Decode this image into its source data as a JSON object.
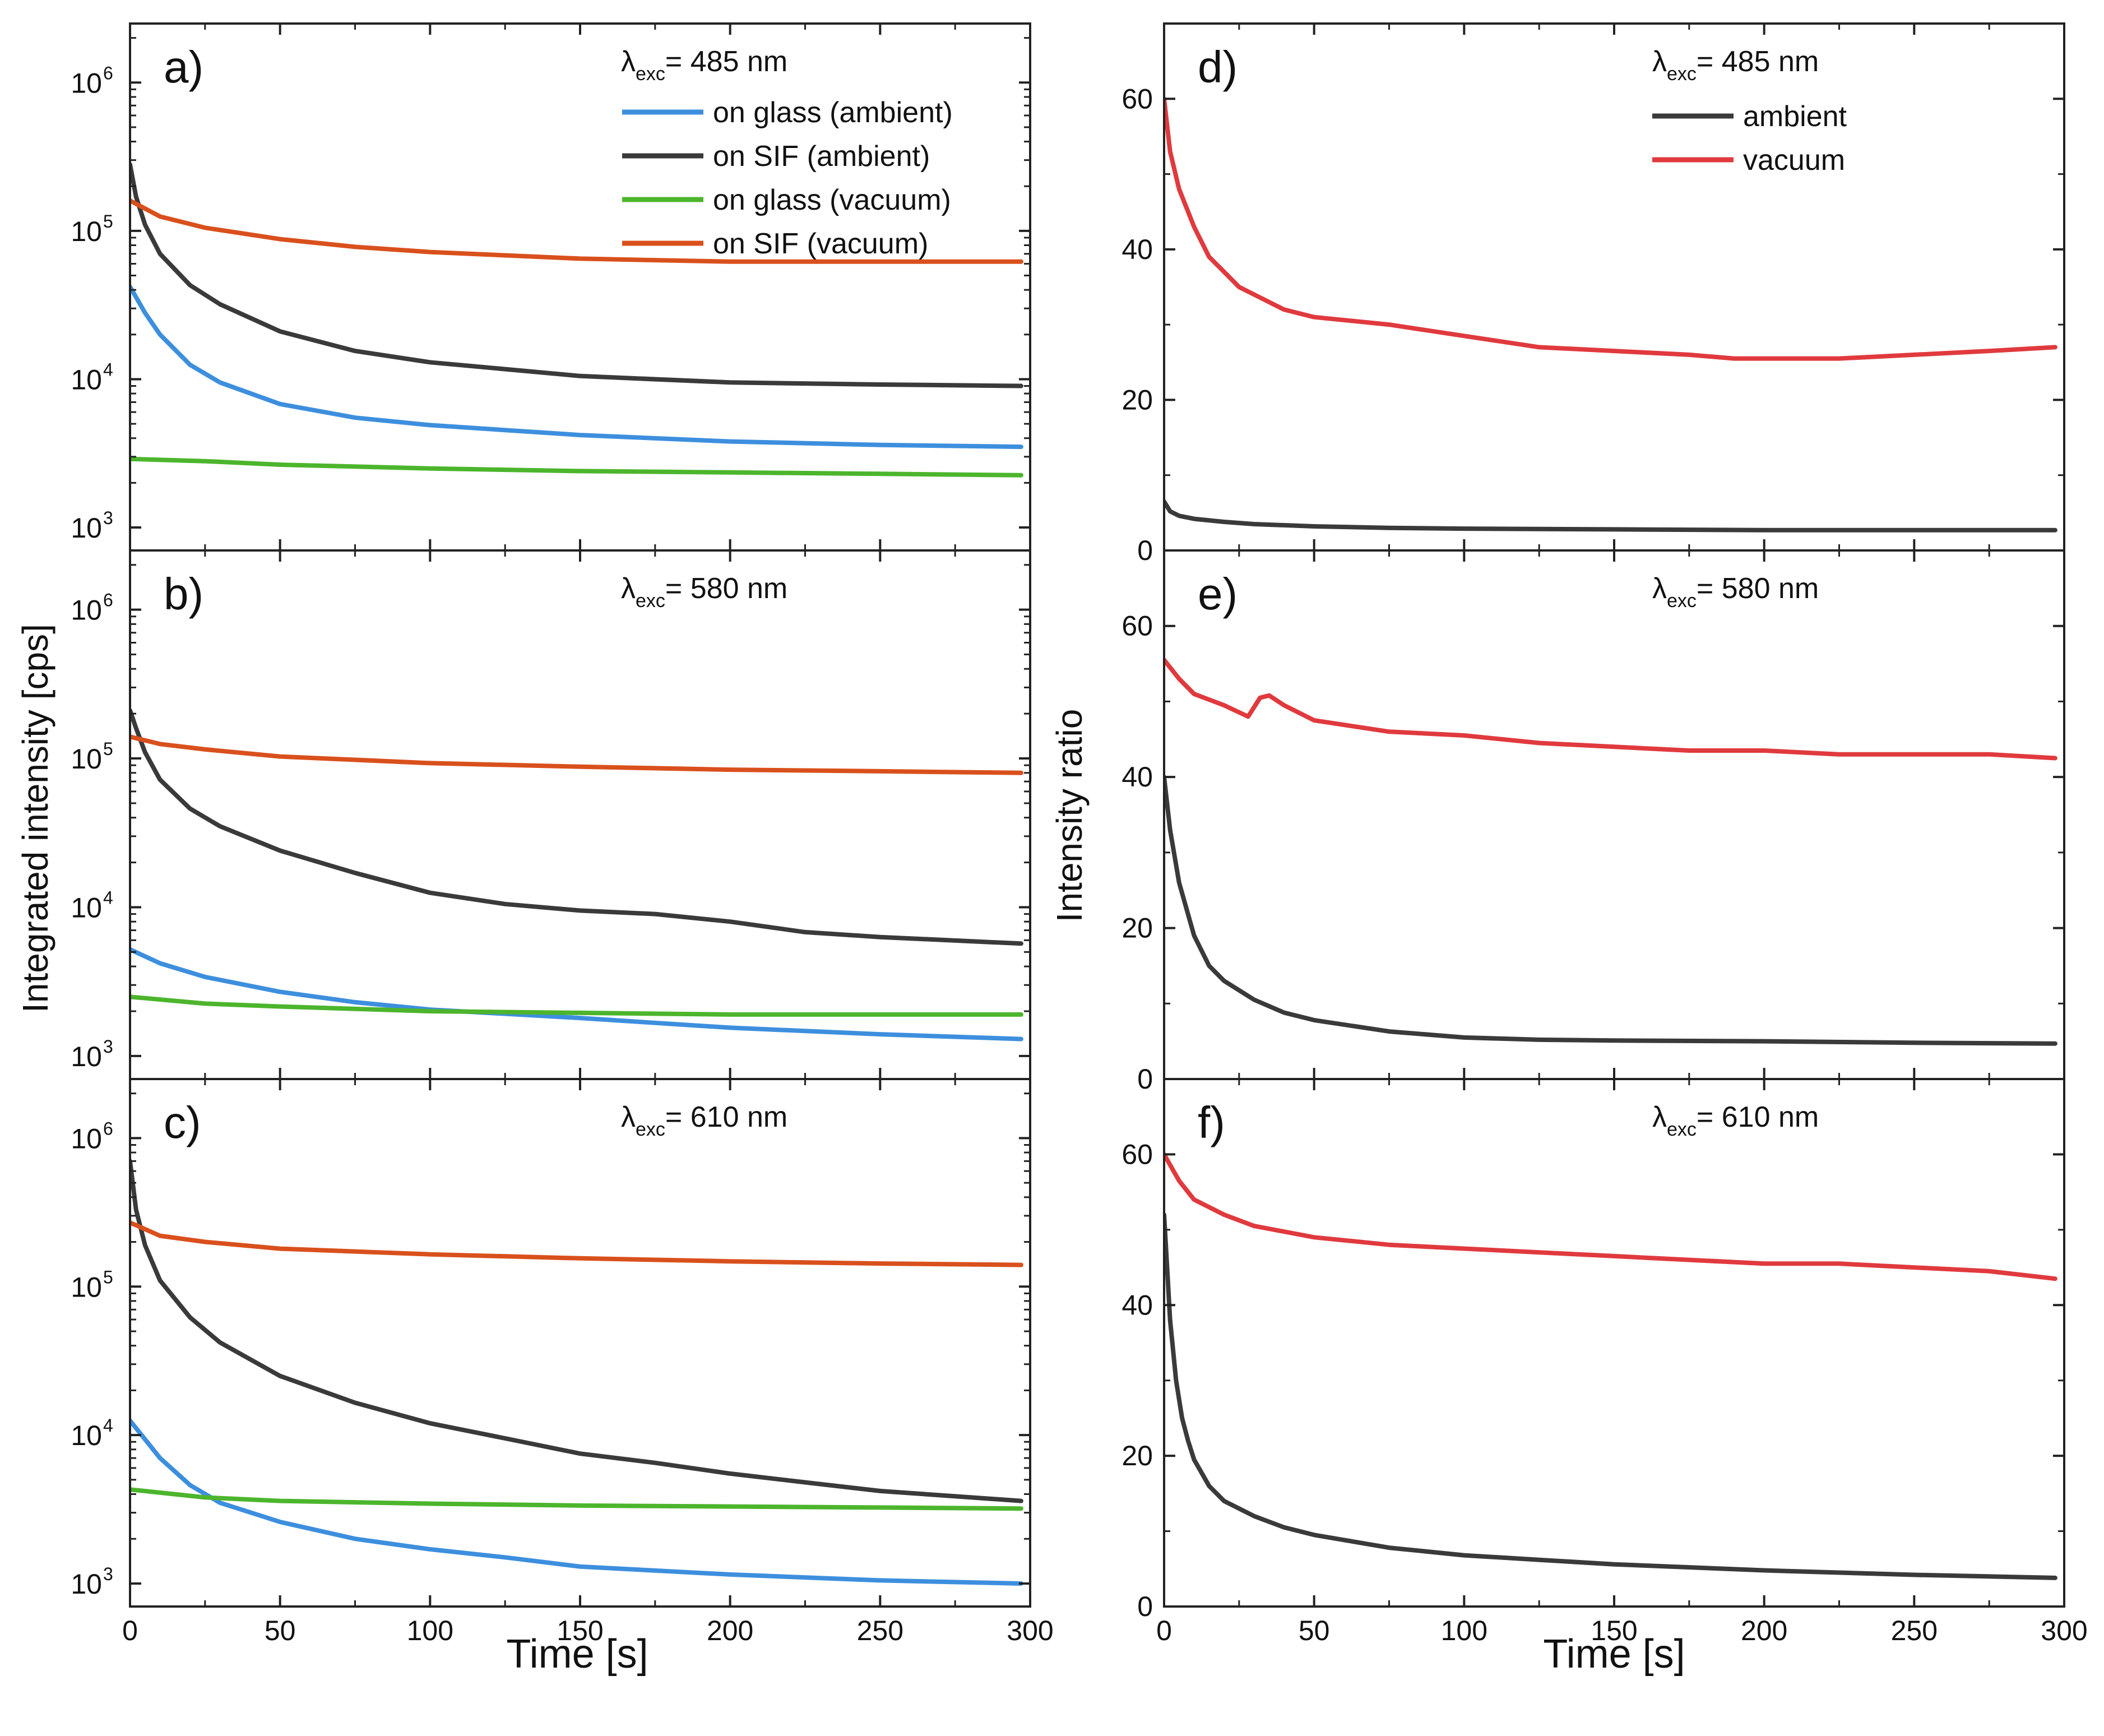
{
  "figure": {
    "left_column": {
      "ylabel": "Integrated intensity [cps]",
      "xlabel": "Time [s]",
      "x_ticks": [
        0,
        50,
        100,
        150,
        200,
        250,
        300
      ],
      "y_tick_mantissa": "10",
      "y_tick_exponents": [
        "3",
        "4",
        "5",
        "6"
      ]
    },
    "right_column": {
      "ylabel": "Intensity ratio",
      "xlabel": "Time [s]",
      "x_ticks": [
        0,
        50,
        100,
        150,
        200,
        250,
        300
      ],
      "y_ticks": [
        0,
        20,
        40,
        60
      ]
    },
    "excitation_prefix": "λ",
    "excitation_subscript": "exc",
    "legend_left": [
      "on glass (ambient)",
      "on SIF (ambient)",
      "on glass (vacuum)",
      "on SIF (vacuum)"
    ],
    "legend_right": [
      "ambient",
      "vacuum"
    ]
  },
  "colors": {
    "glass_ambient": "#3d8fde",
    "sif_ambient": "#3a3a3a",
    "glass_vacuum": "#4cb52c",
    "sif_vacuum": "#d9501c",
    "ratio_ambient": "#3a3a3a",
    "ratio_vacuum": "#e03a3e"
  },
  "chart_data": [
    {
      "panel": "a)",
      "type": "line",
      "yscale": "log",
      "excitation": "= 485 nm",
      "xlabel": "Time [s]",
      "ylabel": "Integrated intensity [cps]",
      "xlim": [
        0,
        300
      ],
      "ylim": [
        700,
        2500000
      ],
      "series": [
        {
          "name": "on glass (ambient)",
          "color_key": "glass_ambient",
          "x": [
            0,
            5,
            10,
            20,
            30,
            50,
            75,
            100,
            150,
            200,
            250,
            297
          ],
          "y": [
            42000,
            28000,
            20000,
            12500,
            9500,
            6800,
            5500,
            4900,
            4200,
            3800,
            3600,
            3500
          ]
        },
        {
          "name": "on SIF (ambient)",
          "color_key": "sif_ambient",
          "x": [
            0,
            2,
            5,
            10,
            20,
            30,
            50,
            75,
            100,
            150,
            200,
            250,
            297
          ],
          "y": [
            280000,
            170000,
            110000,
            70000,
            43000,
            32000,
            21000,
            15500,
            13000,
            10500,
            9500,
            9200,
            9000
          ]
        },
        {
          "name": "on glass (vacuum)",
          "color_key": "glass_vacuum",
          "x": [
            0,
            25,
            50,
            100,
            150,
            200,
            250,
            297
          ],
          "y": [
            2900,
            2800,
            2650,
            2500,
            2400,
            2350,
            2300,
            2250
          ]
        },
        {
          "name": "on SIF (vacuum)",
          "color_key": "sif_vacuum",
          "x": [
            0,
            10,
            25,
            50,
            75,
            100,
            150,
            200,
            250,
            297
          ],
          "y": [
            160000,
            125000,
            105000,
            88000,
            78000,
            72000,
            65000,
            62000,
            62000,
            62000
          ]
        }
      ]
    },
    {
      "panel": "b)",
      "type": "line",
      "yscale": "log",
      "excitation": "= 580 nm",
      "xlabel": "Time [s]",
      "ylabel": "Integrated intensity [cps]",
      "xlim": [
        0,
        300
      ],
      "ylim": [
        700,
        2500000
      ],
      "series": [
        {
          "name": "on glass (ambient)",
          "color_key": "glass_ambient",
          "x": [
            0,
            10,
            25,
            50,
            75,
            100,
            150,
            200,
            250,
            297
          ],
          "y": [
            5200,
            4200,
            3400,
            2700,
            2300,
            2050,
            1800,
            1550,
            1400,
            1300
          ]
        },
        {
          "name": "on SIF (ambient)",
          "color_key": "sif_ambient",
          "x": [
            0,
            2,
            5,
            10,
            20,
            30,
            50,
            75,
            100,
            125,
            150,
            175,
            200,
            225,
            250,
            297
          ],
          "y": [
            210000,
            160000,
            110000,
            72000,
            46000,
            35000,
            24000,
            17000,
            12500,
            10500,
            9500,
            9000,
            8000,
            6800,
            6300,
            5700
          ]
        },
        {
          "name": "on glass (vacuum)",
          "color_key": "glass_vacuum",
          "x": [
            0,
            25,
            50,
            100,
            150,
            200,
            250,
            297
          ],
          "y": [
            2500,
            2250,
            2150,
            2000,
            1950,
            1900,
            1900,
            1900
          ]
        },
        {
          "name": "on SIF (vacuum)",
          "color_key": "sif_vacuum",
          "x": [
            0,
            10,
            25,
            50,
            100,
            150,
            200,
            250,
            297
          ],
          "y": [
            140000,
            125000,
            115000,
            103000,
            93000,
            88000,
            84000,
            82000,
            80000
          ]
        }
      ]
    },
    {
      "panel": "c)",
      "type": "line",
      "yscale": "log",
      "excitation": "= 610 nm",
      "xlabel": "Time [s]",
      "ylabel": "Integrated intensity [cps]",
      "xlim": [
        0,
        300
      ],
      "ylim": [
        700,
        2500000
      ],
      "series": [
        {
          "name": "on glass (ambient)",
          "color_key": "glass_ambient",
          "x": [
            0,
            10,
            20,
            30,
            50,
            75,
            100,
            125,
            150,
            200,
            250,
            297
          ],
          "y": [
            12500,
            7000,
            4600,
            3500,
            2600,
            2000,
            1700,
            1500,
            1300,
            1150,
            1050,
            1000
          ]
        },
        {
          "name": "on SIF (ambient)",
          "color_key": "sif_ambient",
          "x": [
            0,
            2,
            5,
            10,
            20,
            30,
            50,
            75,
            100,
            125,
            150,
            175,
            200,
            225,
            250,
            297
          ],
          "y": [
            700000,
            330000,
            190000,
            110000,
            62000,
            42000,
            25000,
            16500,
            12000,
            9500,
            7500,
            6500,
            5500,
            4800,
            4200,
            3600
          ]
        },
        {
          "name": "on glass (vacuum)",
          "color_key": "glass_vacuum",
          "x": [
            0,
            25,
            50,
            100,
            150,
            200,
            250,
            297
          ],
          "y": [
            4300,
            3800,
            3600,
            3450,
            3350,
            3300,
            3250,
            3200
          ]
        },
        {
          "name": "on SIF (vacuum)",
          "color_key": "sif_vacuum",
          "x": [
            0,
            10,
            25,
            50,
            100,
            150,
            200,
            250,
            297
          ],
          "y": [
            270000,
            220000,
            200000,
            180000,
            165000,
            155000,
            148000,
            143000,
            140000
          ]
        }
      ]
    },
    {
      "panel": "d)",
      "type": "line",
      "yscale": "linear",
      "excitation": "= 485 nm",
      "xlabel": "Time [s]",
      "ylabel": "Intensity ratio",
      "xlim": [
        0,
        300
      ],
      "ylim": [
        0,
        70
      ],
      "series": [
        {
          "name": "ambient",
          "color_key": "ratio_ambient",
          "x": [
            0,
            2,
            5,
            10,
            20,
            30,
            50,
            75,
            100,
            150,
            200,
            250,
            297
          ],
          "y": [
            6.5,
            5.2,
            4.6,
            4.2,
            3.8,
            3.5,
            3.2,
            3.0,
            2.9,
            2.8,
            2.7,
            2.7,
            2.7
          ]
        },
        {
          "name": "vacuum",
          "color_key": "ratio_vacuum",
          "x": [
            0,
            2,
            5,
            10,
            15,
            20,
            25,
            30,
            40,
            50,
            75,
            100,
            125,
            150,
            175,
            190,
            200,
            225,
            250,
            275,
            297
          ],
          "y": [
            60,
            53,
            48,
            43,
            39,
            37,
            35,
            34,
            32,
            31,
            30,
            28.5,
            27,
            26.5,
            26,
            25.5,
            25.5,
            25.5,
            26,
            26.5,
            27
          ]
        }
      ]
    },
    {
      "panel": "e)",
      "type": "line",
      "yscale": "linear",
      "excitation": "= 580 nm",
      "xlabel": "Time [s]",
      "ylabel": "Intensity ratio",
      "xlim": [
        0,
        300
      ],
      "ylim": [
        0,
        70
      ],
      "series": [
        {
          "name": "ambient",
          "color_key": "ratio_ambient",
          "x": [
            0,
            2,
            5,
            10,
            15,
            20,
            30,
            40,
            50,
            75,
            100,
            125,
            150,
            200,
            250,
            297
          ],
          "y": [
            40,
            33,
            26,
            19,
            15,
            13,
            10.5,
            8.8,
            7.8,
            6.3,
            5.5,
            5.2,
            5.1,
            5.0,
            4.8,
            4.7
          ]
        },
        {
          "name": "vacuum",
          "color_key": "ratio_vacuum",
          "x": [
            0,
            5,
            10,
            20,
            28,
            32,
            35,
            40,
            50,
            75,
            100,
            125,
            150,
            175,
            200,
            225,
            250,
            275,
            297
          ],
          "y": [
            55.5,
            53,
            51,
            49.5,
            48,
            50.5,
            50.8,
            49.5,
            47.5,
            46,
            45.5,
            44.5,
            44,
            43.5,
            43.5,
            43,
            43,
            43,
            42.5
          ]
        }
      ]
    },
    {
      "panel": "f)",
      "type": "line",
      "yscale": "linear",
      "excitation": "= 610 nm",
      "xlabel": "Time [s]",
      "ylabel": "Intensity ratio",
      "xlim": [
        0,
        300
      ],
      "ylim": [
        0,
        70
      ],
      "series": [
        {
          "name": "ambient",
          "color_key": "ratio_ambient",
          "x": [
            0,
            1,
            2,
            4,
            6,
            8,
            10,
            15,
            20,
            30,
            40,
            50,
            75,
            100,
            125,
            150,
            200,
            250,
            297
          ],
          "y": [
            52,
            45,
            38,
            30,
            25,
            22,
            19.5,
            16,
            14,
            12,
            10.5,
            9.5,
            7.8,
            6.8,
            6.2,
            5.6,
            4.8,
            4.2,
            3.8
          ]
        },
        {
          "name": "vacuum",
          "color_key": "ratio_vacuum",
          "x": [
            0,
            5,
            10,
            20,
            30,
            50,
            75,
            100,
            125,
            150,
            175,
            200,
            225,
            250,
            275,
            297
          ],
          "y": [
            60,
            56.5,
            54,
            52,
            50.5,
            49,
            48,
            47.5,
            47,
            46.5,
            46,
            45.5,
            45.5,
            45,
            44.5,
            43.5
          ]
        }
      ]
    }
  ]
}
